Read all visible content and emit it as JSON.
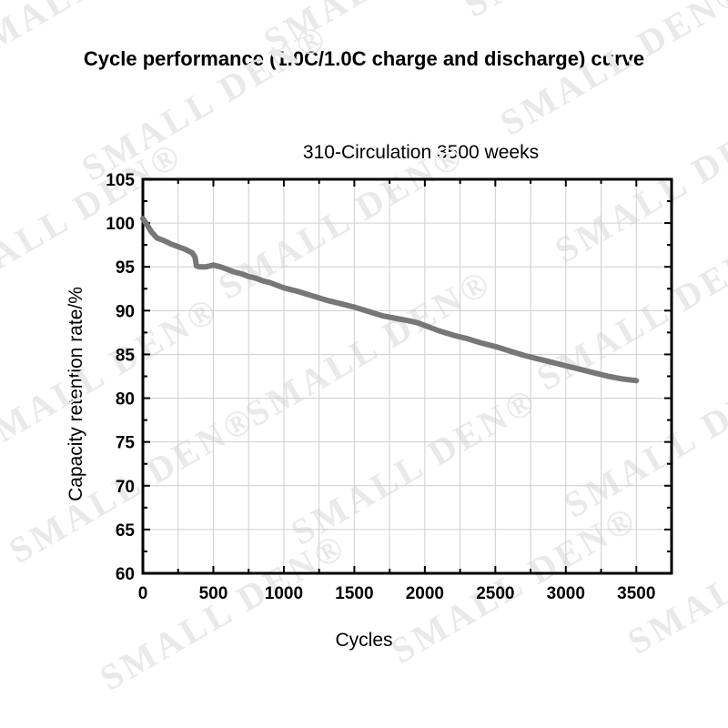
{
  "header": {
    "title": "Cycle performance (1.0C/1.0C charge and discharge) curve"
  },
  "watermark": {
    "text": "SMALL DEN®",
    "color": "#e9e9e9"
  },
  "chart_data": {
    "type": "line",
    "title": "310-Circulation 3500 weeks",
    "xlabel": "Cycles",
    "ylabel": "Capacity retention rate/%",
    "xlim": [
      0,
      3750
    ],
    "ylim": [
      60,
      105
    ],
    "xticks": [
      0,
      500,
      1000,
      1500,
      2000,
      2500,
      3000,
      3500
    ],
    "yticks": [
      60,
      65,
      70,
      75,
      80,
      85,
      90,
      95,
      100,
      105
    ],
    "grid": true,
    "line_color": "#777777",
    "series": [
      {
        "name": "Capacity retention",
        "x": [
          0,
          30,
          60,
          100,
          150,
          200,
          250,
          300,
          350,
          370,
          380,
          400,
          450,
          500,
          550,
          600,
          650,
          700,
          750,
          800,
          850,
          900,
          950,
          1000,
          1100,
          1200,
          1300,
          1400,
          1500,
          1600,
          1700,
          1800,
          1900,
          1950,
          2000,
          2100,
          2200,
          2300,
          2400,
          2500,
          2600,
          2700,
          2800,
          2900,
          3000,
          3100,
          3200,
          3300,
          3400,
          3500
        ],
        "y": [
          100.5,
          99.8,
          99.0,
          98.3,
          98.0,
          97.6,
          97.3,
          97.0,
          96.6,
          96.1,
          95.1,
          95.0,
          95.0,
          95.2,
          95.0,
          94.7,
          94.4,
          94.2,
          93.9,
          93.7,
          93.4,
          93.2,
          92.9,
          92.6,
          92.2,
          91.7,
          91.2,
          90.8,
          90.4,
          89.9,
          89.4,
          89.1,
          88.8,
          88.6,
          88.3,
          87.7,
          87.2,
          86.8,
          86.3,
          85.9,
          85.4,
          84.9,
          84.5,
          84.1,
          83.7,
          83.3,
          82.9,
          82.5,
          82.2,
          82.0
        ]
      }
    ]
  }
}
